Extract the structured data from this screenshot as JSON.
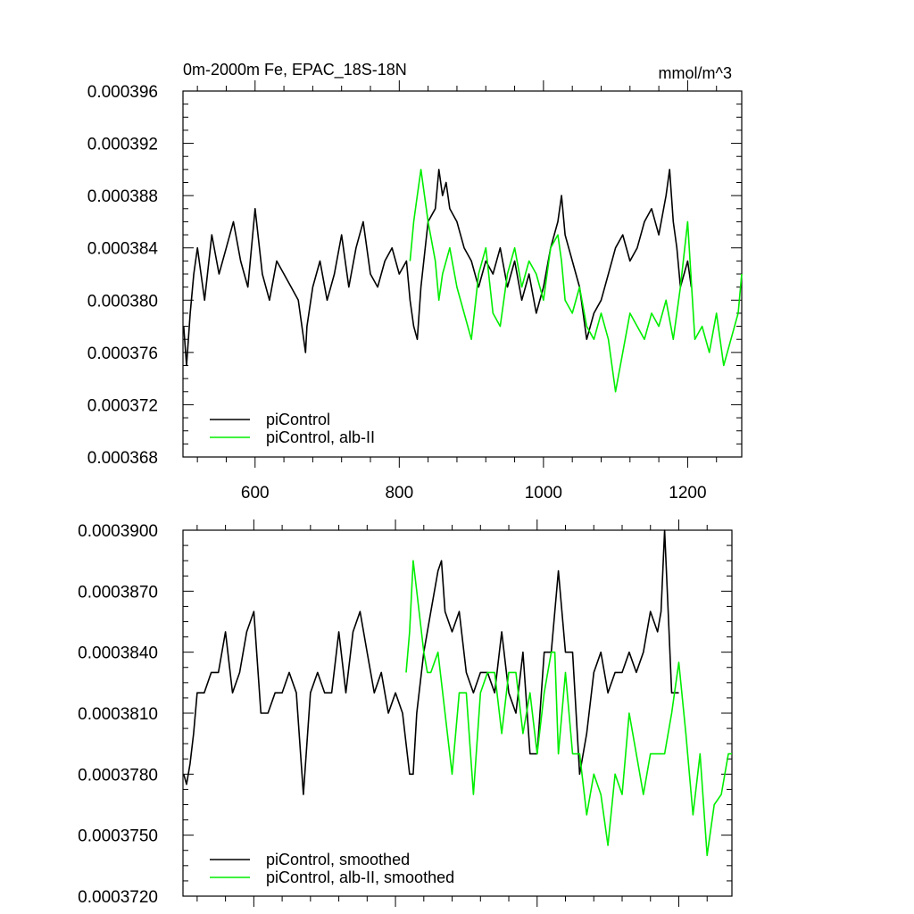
{
  "chart_data": [
    {
      "type": "line",
      "title": "0m-2000m Fe, EPAC_18S-18N",
      "units": "mmol/m^3",
      "xlim": [
        500,
        1275
      ],
      "ylim": [
        0.000368,
        0.000396
      ],
      "x_ticks": [
        600,
        800,
        1000,
        1200
      ],
      "x_tick_labels": [
        "600",
        "800",
        "1000",
        "1200"
      ],
      "y_ticks": [
        0.000368,
        0.000372,
        0.000376,
        0.00038,
        0.000384,
        0.000388,
        0.000392,
        0.000396
      ],
      "y_tick_labels": [
        "0.000368",
        "0.000372",
        "0.000376",
        "0.000380",
        "0.000384",
        "0.000388",
        "0.000392",
        "0.000396"
      ],
      "legend": [
        "piControl",
        "piControl, alb-II"
      ],
      "legend_position": "bottom-left",
      "series": [
        {
          "name": "piControl",
          "color": "#000000",
          "x": [
            501,
            505,
            510,
            515,
            520,
            530,
            540,
            550,
            560,
            570,
            580,
            590,
            600,
            610,
            620,
            630,
            640,
            650,
            660,
            670,
            672,
            680,
            690,
            700,
            710,
            720,
            730,
            740,
            750,
            760,
            770,
            780,
            790,
            800,
            810,
            815,
            820,
            825,
            830,
            840,
            850,
            855,
            860,
            865,
            870,
            880,
            890,
            900,
            910,
            920,
            930,
            940,
            950,
            960,
            970,
            980,
            990,
            1000,
            1010,
            1020,
            1025,
            1030,
            1040,
            1050,
            1060,
            1070,
            1080,
            1090,
            1100,
            1110,
            1120,
            1130,
            1140,
            1150,
            1160,
            1170,
            1175,
            1180,
            1185,
            1190,
            1195,
            1200,
            1205
          ],
          "y": [
            0.000378,
            0.000375,
            0.000379,
            0.000382,
            0.000384,
            0.00038,
            0.000385,
            0.000382,
            0.000384,
            0.000386,
            0.000383,
            0.000381,
            0.000387,
            0.000382,
            0.00038,
            0.000383,
            0.000382,
            0.000381,
            0.00038,
            0.000376,
            0.000378,
            0.000381,
            0.000383,
            0.00038,
            0.000382,
            0.000385,
            0.000381,
            0.000384,
            0.000386,
            0.000382,
            0.000381,
            0.000383,
            0.000384,
            0.000382,
            0.000383,
            0.00038,
            0.000378,
            0.000377,
            0.000381,
            0.000386,
            0.000387,
            0.00039,
            0.000388,
            0.000389,
            0.000387,
            0.000386,
            0.000384,
            0.000383,
            0.000381,
            0.000383,
            0.000382,
            0.000384,
            0.000381,
            0.000383,
            0.00038,
            0.000382,
            0.000379,
            0.000381,
            0.000384,
            0.000386,
            0.000388,
            0.000385,
            0.000383,
            0.000381,
            0.000377,
            0.000379,
            0.00038,
            0.000382,
            0.000384,
            0.000385,
            0.000383,
            0.000384,
            0.000386,
            0.000387,
            0.000385,
            0.000388,
            0.00039,
            0.000386,
            0.000384,
            0.000381,
            0.000382,
            0.000383,
            0.000381
          ]
        },
        {
          "name": "piControl, alb-II",
          "color": "#00ee00",
          "x": [
            815,
            820,
            825,
            830,
            840,
            850,
            855,
            860,
            870,
            880,
            890,
            900,
            910,
            920,
            930,
            940,
            950,
            960,
            970,
            980,
            990,
            1000,
            1010,
            1020,
            1025,
            1030,
            1040,
            1050,
            1060,
            1070,
            1080,
            1090,
            1100,
            1110,
            1120,
            1130,
            1140,
            1150,
            1160,
            1170,
            1180,
            1190,
            1200,
            1210,
            1220,
            1230,
            1240,
            1250,
            1260,
            1270,
            1275
          ],
          "y": [
            0.000383,
            0.000386,
            0.000388,
            0.00039,
            0.000386,
            0.000383,
            0.00038,
            0.000382,
            0.000384,
            0.000381,
            0.000379,
            0.000377,
            0.000382,
            0.000384,
            0.000379,
            0.000378,
            0.000382,
            0.000384,
            0.000381,
            0.000383,
            0.000382,
            0.00038,
            0.000384,
            0.000385,
            0.000383,
            0.00038,
            0.000379,
            0.000381,
            0.000378,
            0.000377,
            0.000379,
            0.000377,
            0.000373,
            0.000376,
            0.000379,
            0.000378,
            0.000377,
            0.000379,
            0.000378,
            0.00038,
            0.000377,
            0.000381,
            0.000386,
            0.000377,
            0.000378,
            0.000376,
            0.000379,
            0.000375,
            0.000377,
            0.000379,
            0.000382
          ]
        }
      ]
    },
    {
      "type": "line",
      "title": "",
      "xlim": [
        500,
        1275
      ],
      "ylim": [
        0.000372,
        0.00039
      ],
      "x_ticks": [
        600,
        800,
        1000,
        1200
      ],
      "x_tick_labels": [],
      "y_ticks": [
        0.000372,
        0.000375,
        0.000378,
        0.000381,
        0.000384,
        0.000387,
        0.00039
      ],
      "y_tick_labels": [
        "0.0003720",
        "0.0003750",
        "0.0003780",
        "0.0003810",
        "0.0003840",
        "0.0003870",
        "0.0003900"
      ],
      "legend": [
        "piControl, smoothed",
        "piControl, alb-II, smoothed"
      ],
      "legend_position": "bottom-left",
      "series": [
        {
          "name": "piControl, smoothed",
          "color": "#000000",
          "x": [
            501,
            505,
            510,
            515,
            520,
            530,
            540,
            550,
            560,
            570,
            580,
            590,
            600,
            610,
            620,
            630,
            640,
            650,
            660,
            670,
            680,
            690,
            700,
            710,
            720,
            730,
            740,
            750,
            760,
            770,
            780,
            790,
            800,
            810,
            820,
            825,
            830,
            840,
            850,
            860,
            865,
            870,
            880,
            890,
            900,
            910,
            920,
            930,
            940,
            950,
            960,
            970,
            980,
            990,
            1000,
            1010,
            1020,
            1025,
            1030,
            1040,
            1050,
            1060,
            1070,
            1080,
            1090,
            1100,
            1110,
            1120,
            1130,
            1140,
            1150,
            1160,
            1170,
            1175,
            1180,
            1185,
            1190,
            1195,
            1200
          ],
          "y": [
            0.000378,
            0.0003775,
            0.0003785,
            0.00038,
            0.000382,
            0.000382,
            0.000383,
            0.000383,
            0.000385,
            0.000382,
            0.000383,
            0.000385,
            0.000386,
            0.000381,
            0.000381,
            0.000382,
            0.000382,
            0.000383,
            0.000382,
            0.000377,
            0.000382,
            0.000383,
            0.000382,
            0.000382,
            0.000385,
            0.000382,
            0.000385,
            0.000386,
            0.000384,
            0.000382,
            0.000383,
            0.000381,
            0.000382,
            0.000381,
            0.000378,
            0.000378,
            0.000381,
            0.000384,
            0.000386,
            0.000388,
            0.0003885,
            0.000386,
            0.000385,
            0.000386,
            0.000383,
            0.000382,
            0.000383,
            0.000383,
            0.000382,
            0.000385,
            0.000382,
            0.000381,
            0.000384,
            0.000379,
            0.000379,
            0.000384,
            0.000384,
            0.000386,
            0.000388,
            0.000384,
            0.000384,
            0.000378,
            0.00038,
            0.000383,
            0.000384,
            0.000382,
            0.000383,
            0.000383,
            0.000384,
            0.000383,
            0.000384,
            0.000386,
            0.000385,
            0.000386,
            0.00039,
            0.000386,
            0.000382,
            0.000382,
            0.000382
          ]
        },
        {
          "name": "piControl, alb-II, smoothed",
          "color": "#00ee00",
          "x": [
            815,
            820,
            825,
            830,
            840,
            845,
            850,
            860,
            870,
            880,
            890,
            900,
            910,
            920,
            930,
            940,
            950,
            960,
            970,
            980,
            990,
            1000,
            1010,
            1020,
            1025,
            1030,
            1040,
            1050,
            1060,
            1070,
            1080,
            1090,
            1100,
            1110,
            1120,
            1130,
            1140,
            1150,
            1160,
            1170,
            1180,
            1190,
            1200,
            1210,
            1220,
            1230,
            1240,
            1250,
            1260,
            1270,
            1275
          ],
          "y": [
            0.000383,
            0.000385,
            0.0003885,
            0.000387,
            0.000384,
            0.000383,
            0.000383,
            0.000384,
            0.000381,
            0.000378,
            0.000382,
            0.000382,
            0.000377,
            0.000382,
            0.000383,
            0.000383,
            0.00038,
            0.000383,
            0.000383,
            0.00038,
            0.000382,
            0.000379,
            0.000382,
            0.000384,
            0.000384,
            0.000379,
            0.000383,
            0.000379,
            0.000379,
            0.000376,
            0.000378,
            0.000377,
            0.0003745,
            0.000378,
            0.000377,
            0.000381,
            0.000379,
            0.000377,
            0.000379,
            0.000379,
            0.000379,
            0.000381,
            0.0003835,
            0.00038,
            0.000376,
            0.000379,
            0.000374,
            0.0003765,
            0.000377,
            0.000379,
            0.000379
          ]
        }
      ]
    }
  ]
}
